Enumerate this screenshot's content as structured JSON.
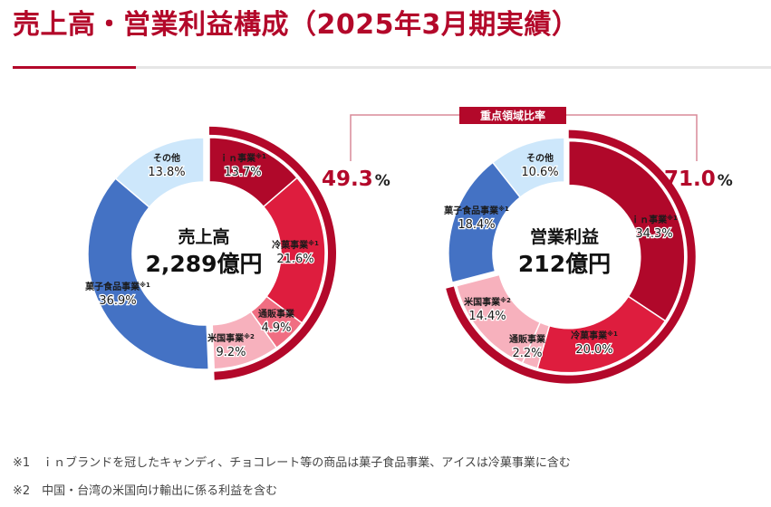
{
  "page": {
    "title": "売上高・営業利益構成（2025年3月期実績）",
    "accent_color": "#b3082a"
  },
  "focus_label": "重点領域比率",
  "chart_data": [
    {
      "type": "pie",
      "center_label": "売上高",
      "center_value": "2,289億円",
      "focus_share": "49.3",
      "focus_unit": "%",
      "segments": [
        {
          "name": "ｉｎ事業",
          "note": "※1",
          "value": 13.7,
          "value_label": "13.7%",
          "color": "#b0082a",
          "focus": true
        },
        {
          "name": "冷菓事業",
          "note": "※1",
          "value": 21.6,
          "value_label": "21.6%",
          "color": "#de1d3e",
          "focus": true
        },
        {
          "name": "通販事業",
          "note": "",
          "value": 4.9,
          "value_label": "4.9%",
          "color": "#f06e82",
          "focus": true
        },
        {
          "name": "米国事業",
          "note": "※2",
          "value": 9.2,
          "value_label": "9.2%",
          "color": "#f7b1bd",
          "focus": true
        },
        {
          "name": "菓子食品事業",
          "note": "※1",
          "value": 36.9,
          "value_label": "36.9%",
          "color": "#4472c4",
          "focus": false
        },
        {
          "name": "その他",
          "note": "",
          "value": 13.8,
          "value_label": "13.8%",
          "color": "#cde7fb",
          "focus": false
        }
      ]
    },
    {
      "type": "pie",
      "center_label": "営業利益",
      "center_value": "212億円",
      "focus_share": "71.0",
      "focus_unit": "%",
      "segments": [
        {
          "name": "ｉｎ事業",
          "note": "※1",
          "value": 34.3,
          "value_label": "34.3%",
          "color": "#b0082a",
          "focus": true
        },
        {
          "name": "冷菓事業",
          "note": "※1",
          "value": 20.0,
          "value_label": "20.0%",
          "color": "#de1d3e",
          "focus": true
        },
        {
          "name": "通販事業",
          "note": "",
          "value": 2.2,
          "value_label": "2.2%",
          "color": "#f7b1bd",
          "focus": true
        },
        {
          "name": "米国事業",
          "note": "※2",
          "value": 14.4,
          "value_label": "14.4%",
          "color": "#f7b1bd",
          "focus": true
        },
        {
          "name": "菓子食品事業",
          "note": "※1",
          "value": 18.4,
          "value_label": "18.4%",
          "color": "#4472c4",
          "focus": false
        },
        {
          "name": "その他",
          "note": "",
          "value": 10.6,
          "value_label": "10.6%",
          "color": "#cde7fb",
          "focus": false
        }
      ]
    }
  ],
  "footnotes": [
    "※1　ｉｎブランドを冠したキャンディ、チョコレート等の商品は菓子食品事業、アイスは冷菓事業に含む",
    "※2　中国・台湾の米国向け輸出に係る利益を含む"
  ]
}
